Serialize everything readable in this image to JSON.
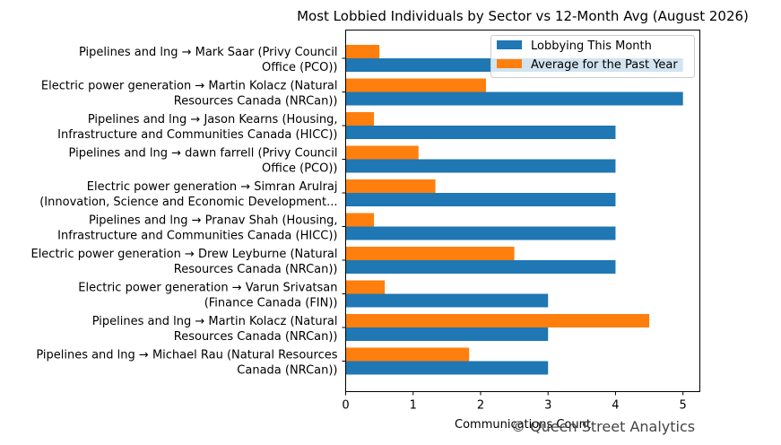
{
  "chart_data": {
    "type": "bar",
    "orientation": "horizontal",
    "title": "Most Lobbied Individuals by Sector vs 12-Month Avg (August 2026)",
    "xlabel": "Communications Count",
    "ylabel": "",
    "xlim": [
      0,
      5.25
    ],
    "xticks": [
      0,
      1,
      2,
      3,
      4,
      5
    ],
    "grid": false,
    "legend_position": "top-right",
    "categories": [
      [
        "Pipelines and lng → Mark Saar (Privy Council",
        "Office (PCO))"
      ],
      [
        "Electric power generation → Martin Kolacz (Natural",
        "Resources Canada (NRCan))"
      ],
      [
        "Pipelines and lng → Jason  Kearns (Housing,",
        "Infrastructure and Communities Canada (HICC))"
      ],
      [
        "Pipelines and lng → dawn farrell (Privy Council",
        "Office (PCO))"
      ],
      [
        "Electric power generation → Simran Arulraj",
        "(Innovation, Science and Economic Development..."
      ],
      [
        "Pipelines and lng → Pranav Shah (Housing,",
        "Infrastructure and Communities Canada (HICC))"
      ],
      [
        "Electric power generation → Drew Leyburne (Natural",
        "Resources Canada (NRCan))"
      ],
      [
        "Electric power generation → Varun  Srivatsan",
        "(Finance Canada (FIN))"
      ],
      [
        "Pipelines and lng → Martin Kolacz (Natural",
        "Resources Canada (NRCan))"
      ],
      [
        "Pipelines and lng → Michael Rau (Natural Resources",
        "Canada (NRCan))"
      ]
    ],
    "series": [
      {
        "name": "Lobbying This Month",
        "color": "#1f77b4",
        "values": [
          5,
          5,
          4,
          4,
          4,
          4,
          4,
          3,
          3,
          3
        ]
      },
      {
        "name": "Average for the Past Year",
        "color": "#ff7f0e",
        "values": [
          0.5,
          2.08,
          0.42,
          1.08,
          1.33,
          0.42,
          2.5,
          0.58,
          4.5,
          1.83
        ]
      }
    ]
  },
  "watermark": "© Queen Street Analytics"
}
